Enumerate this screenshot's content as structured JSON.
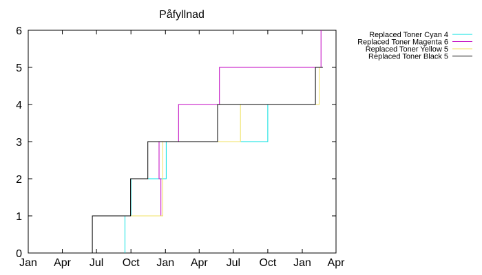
{
  "chart_data": {
    "type": "line",
    "step": true,
    "title": "Påfyllnad",
    "xlabel": "",
    "ylabel": "",
    "x_range": [
      "2020-01-01",
      "2022-04-01"
    ],
    "ylim": [
      0,
      6
    ],
    "yticks": [
      0,
      1,
      2,
      3,
      4,
      5,
      6
    ],
    "xticks": [
      {
        "date": "2020-01-01",
        "label": "Jan"
      },
      {
        "date": "2020-04-01",
        "label": "Apr"
      },
      {
        "date": "2020-07-01",
        "label": "Jul"
      },
      {
        "date": "2020-10-01",
        "label": "Oct"
      },
      {
        "date": "2021-01-01",
        "label": "Jan"
      },
      {
        "date": "2021-04-01",
        "label": "Apr"
      },
      {
        "date": "2021-07-01",
        "label": "Jul"
      },
      {
        "date": "2021-10-01",
        "label": "Oct"
      },
      {
        "date": "2022-01-01",
        "label": "Jan"
      },
      {
        "date": "2022-04-01",
        "label": "Apr"
      }
    ],
    "grid": false,
    "legend_position": "outside top-right",
    "series": [
      {
        "name": "Replaced Toner Cyan 4",
        "color": "#00e0e0",
        "points": [
          [
            "2020-09-15",
            0
          ],
          [
            "2020-09-15",
            1
          ],
          [
            "2020-10-01",
            1
          ],
          [
            "2020-10-01",
            2
          ],
          [
            "2021-01-03",
            2
          ],
          [
            "2021-01-03",
            3
          ],
          [
            "2021-10-01",
            3
          ],
          [
            "2021-10-01",
            4
          ],
          [
            "2022-02-05",
            4
          ]
        ]
      },
      {
        "name": "Replaced Toner Magenta 6",
        "color": "#c000c0",
        "points": [
          [
            "2020-06-20",
            1
          ],
          [
            "2020-12-20",
            1
          ],
          [
            "2020-12-20",
            2
          ],
          [
            "2020-12-15",
            2
          ],
          [
            "2020-12-15",
            3
          ],
          [
            "2021-02-05",
            3
          ],
          [
            "2021-02-05",
            4
          ],
          [
            "2021-05-25",
            4
          ],
          [
            "2021-05-25",
            5
          ],
          [
            "2022-02-20",
            5
          ],
          [
            "2022-02-20",
            6
          ]
        ]
      },
      {
        "name": "Replaced Toner Yellow 5",
        "color": "#f0e060",
        "points": [
          [
            "2020-09-25",
            1
          ],
          [
            "2020-12-25",
            1
          ],
          [
            "2020-12-25",
            3
          ],
          [
            "2021-07-20",
            3
          ],
          [
            "2021-07-20",
            4
          ],
          [
            "2022-02-15",
            4
          ],
          [
            "2022-02-15",
            5
          ]
        ]
      },
      {
        "name": "Replaced Toner Black 5",
        "color": "#000000",
        "points": [
          [
            "2020-06-20",
            0
          ],
          [
            "2020-06-20",
            1
          ],
          [
            "2020-09-30",
            1
          ],
          [
            "2020-09-30",
            2
          ],
          [
            "2020-11-15",
            2
          ],
          [
            "2020-11-15",
            3
          ],
          [
            "2021-05-20",
            3
          ],
          [
            "2021-05-20",
            4
          ],
          [
            "2022-02-05",
            4
          ],
          [
            "2022-02-05",
            5
          ],
          [
            "2022-02-25",
            5
          ]
        ]
      }
    ]
  }
}
